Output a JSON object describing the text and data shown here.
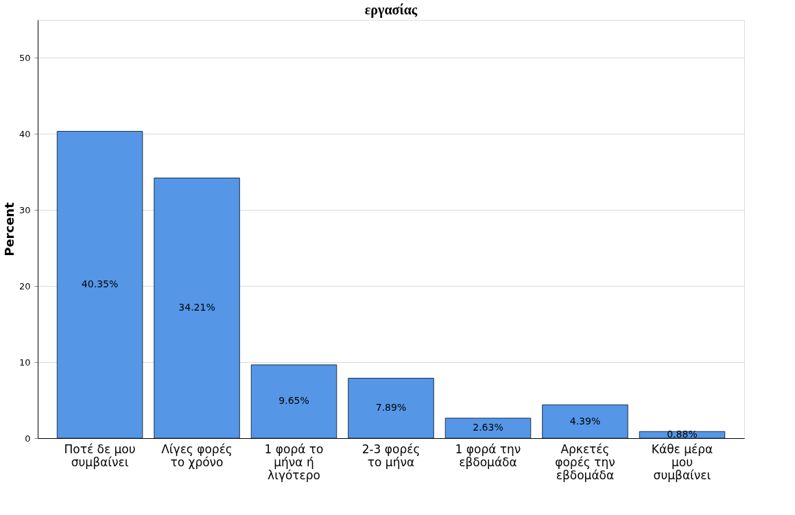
{
  "chart_data": {
    "type": "bar",
    "title": "εργασίας",
    "ylabel": "Percent",
    "categories": [
      "Ποτέ δε μου συμβαίνει",
      "Λίγες φορές το χρόνο",
      "1 φορά το μήνα ή λιγότερο",
      "2-3 φορές το μήνα",
      "1 φορά την εβδομάδα",
      "Αρκετές φορές την εβδομάδα",
      "Κάθε μέρα μου συμβαίνει"
    ],
    "values": [
      40.35,
      34.21,
      9.65,
      7.89,
      2.63,
      4.39,
      0.88
    ],
    "value_labels": [
      "40.35%",
      "34.21%",
      "9.65%",
      "7.89%",
      "2.63%",
      "4.39%",
      "0.88%"
    ],
    "color": "#5596e6",
    "ylim": [
      0,
      55
    ],
    "yticks": [
      0,
      10,
      20,
      30,
      40,
      50
    ],
    "grid": "y"
  }
}
